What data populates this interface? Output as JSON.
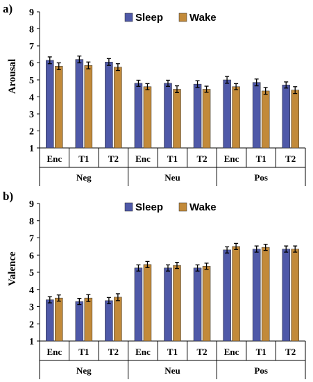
{
  "colors": {
    "sleep": "#4f59a8",
    "wake": "#c28a3a",
    "error": "#000000"
  },
  "chart_data": [
    {
      "panel": "a)",
      "type": "bar",
      "ylabel": "Arousal",
      "ylim": [
        1,
        9
      ],
      "yticks": [
        "1",
        "2",
        "3",
        "4",
        "5",
        "6",
        "7",
        "8",
        "9"
      ],
      "legend": {
        "placement": "top-center",
        "entries": [
          "Sleep",
          "Wake"
        ]
      },
      "categories": [
        "Enc",
        "T1",
        "T2",
        "Enc",
        "T1",
        "T2",
        "Enc",
        "T1",
        "T2"
      ],
      "groups": [
        "Neg",
        "Neu",
        "Pos"
      ],
      "series": [
        {
          "name": "Sleep",
          "values": [
            6.15,
            6.2,
            6.05,
            4.8,
            4.8,
            4.75,
            5.0,
            4.85,
            4.7
          ],
          "errors": [
            0.2,
            0.2,
            0.2,
            0.18,
            0.18,
            0.2,
            0.2,
            0.2,
            0.18
          ]
        },
        {
          "name": "Wake",
          "values": [
            5.8,
            5.85,
            5.75,
            4.6,
            4.45,
            4.45,
            4.6,
            4.35,
            4.4
          ],
          "errors": [
            0.2,
            0.2,
            0.2,
            0.18,
            0.2,
            0.18,
            0.18,
            0.2,
            0.2
          ]
        }
      ]
    },
    {
      "panel": "b)",
      "type": "bar",
      "ylabel": "Valence",
      "ylim": [
        1,
        9
      ],
      "yticks": [
        "1",
        "2",
        "3",
        "4",
        "5",
        "6",
        "7",
        "8",
        "9"
      ],
      "legend": {
        "placement": "top-center",
        "entries": [
          "Sleep",
          "Wake"
        ]
      },
      "categories": [
        "Enc",
        "T1",
        "T2",
        "Enc",
        "T1",
        "T2",
        "Enc",
        "T1",
        "T2"
      ],
      "groups": [
        "Neg",
        "Neu",
        "Pos"
      ],
      "series": [
        {
          "name": "Sleep",
          "values": [
            3.4,
            3.3,
            3.35,
            5.25,
            5.25,
            5.25,
            6.3,
            6.35,
            6.35
          ],
          "errors": [
            0.18,
            0.18,
            0.18,
            0.18,
            0.18,
            0.18,
            0.18,
            0.18,
            0.18
          ]
        },
        {
          "name": "Wake",
          "values": [
            3.5,
            3.5,
            3.55,
            5.45,
            5.4,
            5.35,
            6.5,
            6.45,
            6.35
          ],
          "errors": [
            0.18,
            0.2,
            0.2,
            0.18,
            0.18,
            0.18,
            0.18,
            0.18,
            0.18
          ]
        }
      ]
    }
  ]
}
